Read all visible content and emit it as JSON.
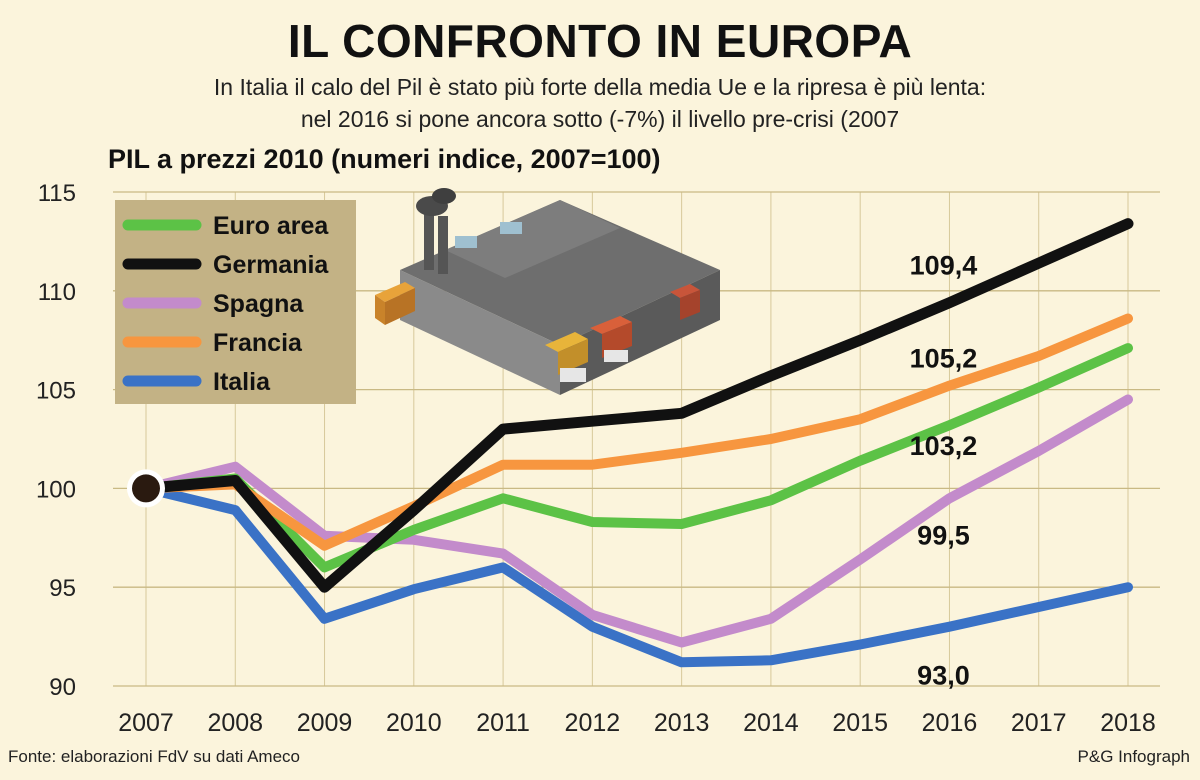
{
  "title": "IL CONFRONTO IN EUROPA",
  "subtitle_line1": "In Italia il calo del Pil è stato più forte della media Ue e la ripresa è più lenta:",
  "subtitle_line2": "nel 2016 si pone ancora sotto (-7%) il livello pre-crisi (2007",
  "source": "Fonte: elaborazioni FdV su dati Ameco",
  "credit": "P&G Infograph",
  "chart_data": {
    "type": "line",
    "title": "PIL a prezzi 2010 (numeri indice, 2007=100)",
    "xlabel": "",
    "ylabel": "",
    "x": [
      "2007",
      "2008",
      "2009",
      "2010",
      "2011",
      "2012",
      "2013",
      "2014",
      "2015",
      "2016",
      "2017",
      "2018"
    ],
    "ylim": [
      90,
      115
    ],
    "yticks": [
      "90",
      "95",
      "100",
      "105",
      "110",
      "115"
    ],
    "grid": true,
    "legend_position": "top-left",
    "series": [
      {
        "name": "Euro area",
        "color": "#5cc246",
        "values": [
          100,
          100.5,
          96.0,
          97.9,
          99.5,
          98.3,
          98.2,
          99.4,
          101.4,
          103.2,
          105.1,
          107.1
        ]
      },
      {
        "name": "Germania",
        "color": "#111111",
        "values": [
          100,
          100.4,
          95.0,
          98.9,
          103.0,
          103.4,
          103.8,
          105.7,
          107.5,
          109.4,
          111.4,
          113.4
        ]
      },
      {
        "name": "Spagna",
        "color": "#c38bcb",
        "values": [
          100,
          101.1,
          97.6,
          97.4,
          96.7,
          93.6,
          92.2,
          93.4,
          96.4,
          99.5,
          101.9,
          104.5
        ]
      },
      {
        "name": "Francia",
        "color": "#f7963f",
        "values": [
          100,
          100.2,
          97.1,
          99.1,
          101.2,
          101.2,
          101.8,
          102.5,
          103.5,
          105.2,
          106.7,
          108.6
        ]
      },
      {
        "name": "Italia",
        "color": "#3a72c6",
        "values": [
          100,
          98.9,
          93.4,
          94.9,
          96.0,
          93.0,
          91.2,
          91.3,
          92.1,
          93.0,
          94.0,
          95.0
        ]
      }
    ],
    "annotations": [
      {
        "label": "109,4",
        "series": "Germania",
        "x": "2016"
      },
      {
        "label": "105,2",
        "series": "Francia",
        "x": "2016"
      },
      {
        "label": "103,2",
        "series": "Euro area",
        "x": "2016"
      },
      {
        "label": "99,5",
        "series": "Spagna",
        "x": "2016"
      },
      {
        "label": "93,0",
        "series": "Italia",
        "x": "2016"
      }
    ],
    "origin_marker": {
      "x": "2007",
      "value": 100
    }
  }
}
